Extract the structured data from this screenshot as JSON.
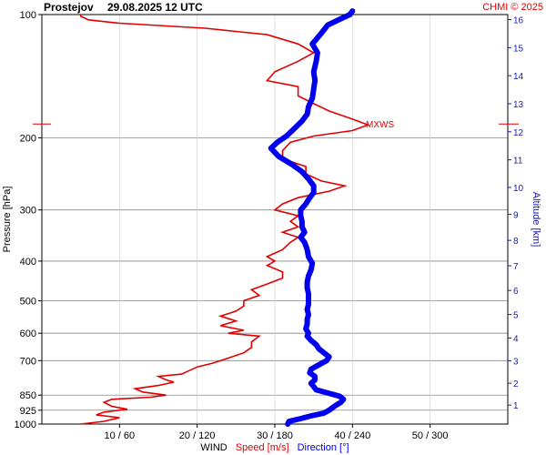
{
  "header": {
    "station": "Prostejov",
    "datetime": "29.08.2025 12 UTC",
    "credit": "CHMI © 2025"
  },
  "chart_data": {
    "type": "line",
    "ylabel_left": "Pressure [hPa]",
    "ylabel_right": "Altitude [km]",
    "xlabel_parts": {
      "wind": "WIND",
      "speed": "Speed [m/s]",
      "direction": "Direction [°]"
    },
    "x_tick_labels": [
      "10 / 60",
      "20 / 120",
      "30 / 180",
      "40 / 240",
      "50 / 300"
    ],
    "x_ticks_speed": [
      10,
      20,
      30,
      40,
      50
    ],
    "speed_range": [
      0,
      60
    ],
    "direction_range": [
      0,
      360
    ],
    "y_scale": "log",
    "pressure_range": [
      1000,
      100
    ],
    "pressure_ticks": [
      100,
      200,
      300,
      400,
      500,
      600,
      700,
      850,
      925,
      1000
    ],
    "altitude_ticks": [
      1,
      2,
      3,
      4,
      5,
      6,
      7,
      8,
      9,
      10,
      11,
      12,
      13,
      14,
      15,
      16
    ],
    "gridlines_pressure": [
      200,
      300,
      400,
      500,
      600,
      700,
      850,
      925
    ],
    "max_wind_label": "MXWS",
    "max_wind_pressure": 185,
    "colors": {
      "speed": "#e00000",
      "direction": "#0000ee",
      "altitude": "#1a1aa6",
      "grid": "#888888"
    },
    "series": [
      {
        "name": "Speed [m/s]",
        "color": "#e00000",
        "points": [
          [
            1000,
            5
          ],
          [
            985,
            8
          ],
          [
            965,
            10
          ],
          [
            950,
            7
          ],
          [
            935,
            8
          ],
          [
            920,
            11
          ],
          [
            905,
            9
          ],
          [
            885,
            8
          ],
          [
            870,
            9
          ],
          [
            860,
            14
          ],
          [
            850,
            16
          ],
          [
            835,
            13
          ],
          [
            820,
            12
          ],
          [
            805,
            15
          ],
          [
            790,
            17
          ],
          [
            780,
            16
          ],
          [
            765,
            15
          ],
          [
            755,
            18
          ],
          [
            740,
            19
          ],
          [
            725,
            20
          ],
          [
            710,
            22
          ],
          [
            690,
            24
          ],
          [
            670,
            26
          ],
          [
            650,
            27
          ],
          [
            630,
            27
          ],
          [
            610,
            28
          ],
          [
            600,
            24
          ],
          [
            590,
            26
          ],
          [
            575,
            23
          ],
          [
            560,
            25
          ],
          [
            545,
            23
          ],
          [
            530,
            25
          ],
          [
            515,
            26
          ],
          [
            500,
            26
          ],
          [
            485,
            28
          ],
          [
            470,
            27
          ],
          [
            455,
            29
          ],
          [
            440,
            31
          ],
          [
            425,
            31
          ],
          [
            410,
            29
          ],
          [
            400,
            30
          ],
          [
            390,
            29
          ],
          [
            375,
            31
          ],
          [
            360,
            32
          ],
          [
            350,
            33
          ],
          [
            340,
            31
          ],
          [
            330,
            33
          ],
          [
            320,
            32
          ],
          [
            310,
            33
          ],
          [
            300,
            30
          ],
          [
            290,
            31
          ],
          [
            280,
            33
          ],
          [
            270,
            37
          ],
          [
            262,
            39
          ],
          [
            255,
            36
          ],
          [
            245,
            34
          ],
          [
            235,
            34
          ],
          [
            225,
            31
          ],
          [
            215,
            31
          ],
          [
            205,
            32
          ],
          [
            198,
            35
          ],
          [
            192,
            40
          ],
          [
            186,
            42
          ],
          [
            180,
            40
          ],
          [
            172,
            37
          ],
          [
            165,
            35
          ],
          [
            158,
            33
          ],
          [
            150,
            33
          ],
          [
            145,
            29
          ],
          [
            138,
            30
          ],
          [
            130,
            33
          ],
          [
            124,
            35
          ],
          [
            118,
            33
          ],
          [
            112,
            29
          ],
          [
            108,
            21
          ],
          [
            105,
            10
          ],
          [
            103,
            6
          ],
          [
            101,
            5
          ],
          [
            100,
            5
          ]
        ]
      },
      {
        "name": "Direction [°]",
        "color": "#0000ee",
        "points": [
          [
            1000,
            190
          ],
          [
            985,
            191
          ],
          [
            970,
            200
          ],
          [
            955,
            208
          ],
          [
            940,
            218
          ],
          [
            925,
            222
          ],
          [
            905,
            226
          ],
          [
            885,
            231
          ],
          [
            870,
            233
          ],
          [
            855,
            230
          ],
          [
            840,
            221
          ],
          [
            825,
            212
          ],
          [
            810,
            210
          ],
          [
            795,
            208
          ],
          [
            780,
            211
          ],
          [
            765,
            211
          ],
          [
            750,
            207
          ],
          [
            735,
            208
          ],
          [
            720,
            213
          ],
          [
            700,
            220
          ],
          [
            685,
            222
          ],
          [
            670,
            218
          ],
          [
            655,
            214
          ],
          [
            640,
            212
          ],
          [
            625,
            208
          ],
          [
            610,
            205
          ],
          [
            600,
            206
          ],
          [
            585,
            204
          ],
          [
            570,
            205
          ],
          [
            555,
            205
          ],
          [
            540,
            206
          ],
          [
            525,
            205
          ],
          [
            510,
            206
          ],
          [
            495,
            206
          ],
          [
            480,
            206
          ],
          [
            465,
            205
          ],
          [
            450,
            205
          ],
          [
            435,
            206
          ],
          [
            420,
            208
          ],
          [
            405,
            209
          ],
          [
            390,
            206
          ],
          [
            375,
            205
          ],
          [
            360,
            203
          ],
          [
            350,
            200
          ],
          [
            340,
            203
          ],
          [
            330,
            201
          ],
          [
            320,
            201
          ],
          [
            310,
            200
          ],
          [
            300,
            200
          ],
          [
            290,
            204
          ],
          [
            280,
            207
          ],
          [
            272,
            210
          ],
          [
            262,
            210
          ],
          [
            252,
            206
          ],
          [
            242,
            201
          ],
          [
            232,
            193
          ],
          [
            222,
            183
          ],
          [
            212,
            177
          ],
          [
            205,
            182
          ],
          [
            198,
            189
          ],
          [
            190,
            195
          ],
          [
            182,
            201
          ],
          [
            175,
            205
          ],
          [
            168,
            206
          ],
          [
            160,
            209
          ],
          [
            152,
            210
          ],
          [
            145,
            211
          ],
          [
            138,
            210
          ],
          [
            130,
            212
          ],
          [
            124,
            213
          ],
          [
            118,
            209
          ],
          [
            112,
            215
          ],
          [
            106,
            221
          ],
          [
            102,
            232
          ],
          [
            100,
            238
          ],
          [
            98,
            240
          ]
        ]
      }
    ]
  }
}
